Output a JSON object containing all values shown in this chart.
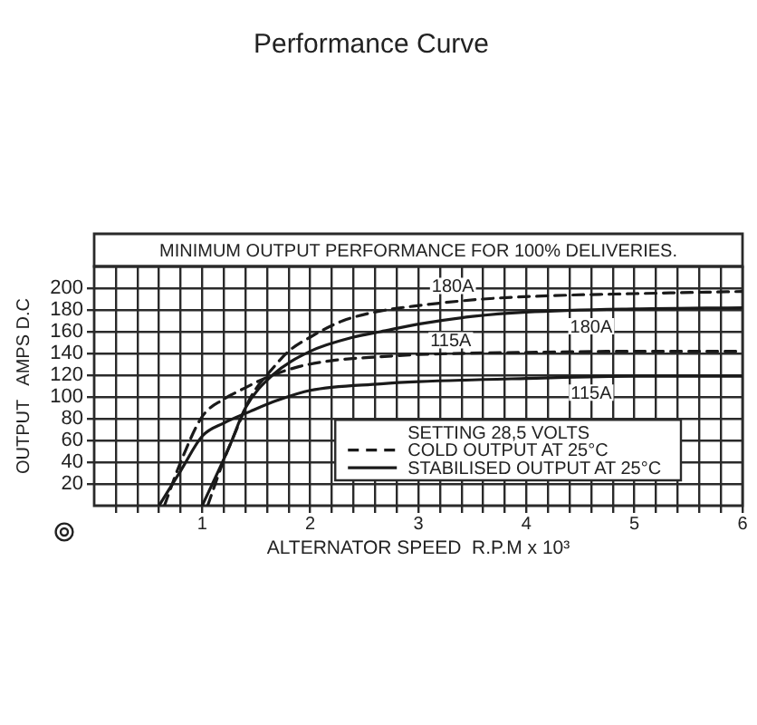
{
  "chart_data": {
    "type": "line",
    "title": "Performance Curve",
    "subtitle": "MINIMUM OUTPUT PERFORMANCE FOR 100% DELIVERIES.",
    "xlabel": "ALTERNATOR SPEED  R.P.M x 10³",
    "ylabel": "OUTPUT   AMPS D.C",
    "legend_title": "SETTING 28,5 VOLTS",
    "annotations": [
      {
        "text": "180A",
        "x": 3.32,
        "y": 202
      },
      {
        "text": "115A",
        "x": 3.3,
        "y": 152
      },
      {
        "text": "180A",
        "x": 4.6,
        "y": 165
      },
      {
        "text": "115A",
        "x": 4.6,
        "y": 104
      }
    ],
    "series": [
      {
        "name": "COLD OUTPUT AT 25°C",
        "color": "#1a1a1a",
        "line_style": "dashed",
        "x": [
          1.05,
          1.2,
          1.3,
          1.45,
          1.65,
          1.8,
          2.0,
          2.3,
          2.65,
          3.0,
          3.6,
          4.2,
          5.0,
          6.0
        ],
        "values": [
          0,
          42,
          66,
          100,
          126,
          142,
          155,
          170,
          179,
          184,
          190,
          193,
          195,
          197
        ]
      },
      {
        "name": "STABILISED OUTPUT AT 25°C",
        "color": "#1a1a1a",
        "line_style": "solid",
        "x": [
          1.0,
          1.25,
          1.4,
          1.65,
          2.0,
          2.4,
          2.65,
          3.0,
          3.5,
          4.0,
          5.0,
          6.0
        ],
        "values": [
          0,
          54,
          90,
          120,
          142,
          155,
          160,
          167,
          174,
          178,
          181,
          182
        ]
      },
      {
        "color": "#1a1a1a",
        "line_style": "dashed",
        "x": [
          0.65,
          0.8,
          1.0,
          1.2,
          1.35,
          1.6,
          1.9,
          2.25,
          2.65,
          3.0,
          4.0,
          5.0,
          6.0
        ],
        "values": [
          0,
          40,
          82,
          98,
          106,
          118,
          128,
          134,
          137,
          139,
          141,
          142,
          142
        ]
      },
      {
        "color": "#1a1a1a",
        "line_style": "solid",
        "x": [
          0.6,
          0.8,
          1.0,
          1.2,
          1.45,
          1.7,
          2.0,
          2.65,
          3.0,
          4.0,
          5.0,
          6.0
        ],
        "values": [
          0,
          32,
          64,
          76,
          87,
          97,
          106,
          112,
          114,
          117,
          119,
          119
        ]
      }
    ],
    "xlim": [
      0,
      6
    ],
    "xticks": [
      {
        "value": 0.2,
        "label": null
      },
      {
        "value": 0.4,
        "label": null
      },
      {
        "value": 0.6,
        "label": null
      },
      {
        "value": 0.8,
        "label": null
      },
      1,
      {
        "value": 1.2,
        "label": null
      },
      {
        "value": 1.4,
        "label": null
      },
      {
        "value": 1.6,
        "label": null
      },
      {
        "value": 1.8,
        "label": null
      },
      2,
      {
        "value": 2.2,
        "label": null
      },
      {
        "value": 2.4,
        "label": null
      },
      {
        "value": 2.6,
        "label": null
      },
      {
        "value": 2.8,
        "label": null
      },
      3,
      {
        "value": 3.2,
        "label": null
      },
      {
        "value": 3.4,
        "label": null
      },
      {
        "value": 3.6,
        "label": null
      },
      {
        "value": 3.8,
        "label": null
      },
      4,
      {
        "value": 4.2,
        "label": null
      },
      {
        "value": 4.4,
        "label": null
      },
      {
        "value": 4.6,
        "label": null
      },
      {
        "value": 4.8,
        "label": null
      },
      5,
      {
        "value": 5.2,
        "label": null
      },
      {
        "value": 5.4,
        "label": null
      },
      {
        "value": 5.6,
        "label": null
      },
      {
        "value": 5.8,
        "label": null
      },
      6
    ],
    "ylim": [
      0,
      220
    ],
    "yticks": [
      20,
      40,
      60,
      80,
      100,
      120,
      140,
      160,
      180,
      200
    ],
    "grid": true,
    "legend": "bottom right",
    "marker": "none"
  }
}
